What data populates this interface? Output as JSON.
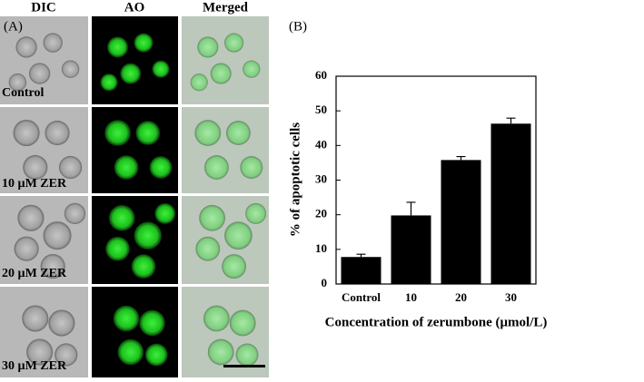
{
  "panel_a": {
    "label": "(A)",
    "columns": [
      "DIC",
      "AO",
      "Merged"
    ],
    "rows": [
      "Control",
      "10 µM ZER",
      "20 µM ZER",
      "30 µM ZER"
    ]
  },
  "chart_data": {
    "type": "bar",
    "panel_label": "(B)",
    "x_label": "Concentration of zerumbone (μmol/L)",
    "y_label": "% of apoptotic cells",
    "categories": [
      "Control",
      "10",
      "20",
      "30"
    ],
    "values": [
      7.8,
      19.8,
      35.8,
      46.3
    ],
    "errors": [
      0.8,
      3.8,
      1.0,
      1.6
    ],
    "color": "#000000",
    "ylim": [
      0,
      60
    ],
    "yticks": [
      0,
      10,
      20,
      30,
      40,
      50,
      60
    ],
    "grid": false
  }
}
